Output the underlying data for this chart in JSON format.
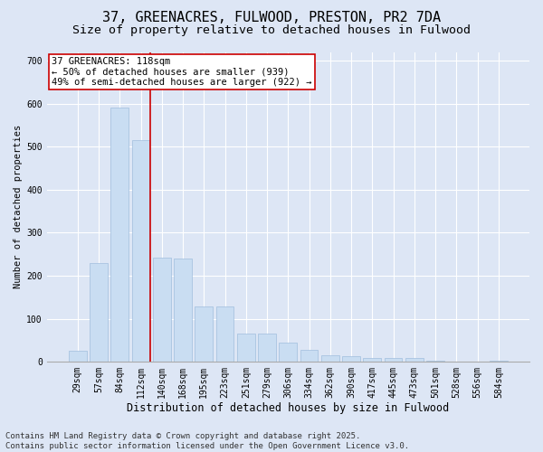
{
  "title": "37, GREENACRES, FULWOOD, PRESTON, PR2 7DA",
  "subtitle": "Size of property relative to detached houses in Fulwood",
  "xlabel": "Distribution of detached houses by size in Fulwood",
  "ylabel": "Number of detached properties",
  "categories": [
    "29sqm",
    "57sqm",
    "84sqm",
    "112sqm",
    "140sqm",
    "168sqm",
    "195sqm",
    "223sqm",
    "251sqm",
    "279sqm",
    "306sqm",
    "334sqm",
    "362sqm",
    "390sqm",
    "417sqm",
    "445sqm",
    "473sqm",
    "501sqm",
    "528sqm",
    "556sqm",
    "584sqm"
  ],
  "values": [
    25,
    230,
    590,
    515,
    242,
    240,
    128,
    128,
    65,
    65,
    45,
    27,
    15,
    13,
    8,
    8,
    8,
    3,
    0,
    0,
    2
  ],
  "bar_color": "#c9ddf2",
  "bar_edge_color": "#a0bedd",
  "annotation_box_text": "37 GREENACRES: 118sqm\n← 50% of detached houses are smaller (939)\n49% of semi-detached houses are larger (922) →",
  "annotation_box_color": "#ffffff",
  "annotation_box_edge_color": "#cc0000",
  "vline_color": "#cc0000",
  "background_color": "#dde6f5",
  "plot_bg_color": "#dde6f5",
  "grid_color": "#ffffff",
  "footer": "Contains HM Land Registry data © Crown copyright and database right 2025.\nContains public sector information licensed under the Open Government Licence v3.0.",
  "ylim": [
    0,
    720
  ],
  "yticks": [
    0,
    100,
    200,
    300,
    400,
    500,
    600,
    700
  ],
  "title_fontsize": 11,
  "subtitle_fontsize": 9.5,
  "xlabel_fontsize": 8.5,
  "ylabel_fontsize": 7.5,
  "tick_fontsize": 7,
  "footer_fontsize": 6.5,
  "annotation_fontsize": 7.5,
  "vline_x": 3.43
}
